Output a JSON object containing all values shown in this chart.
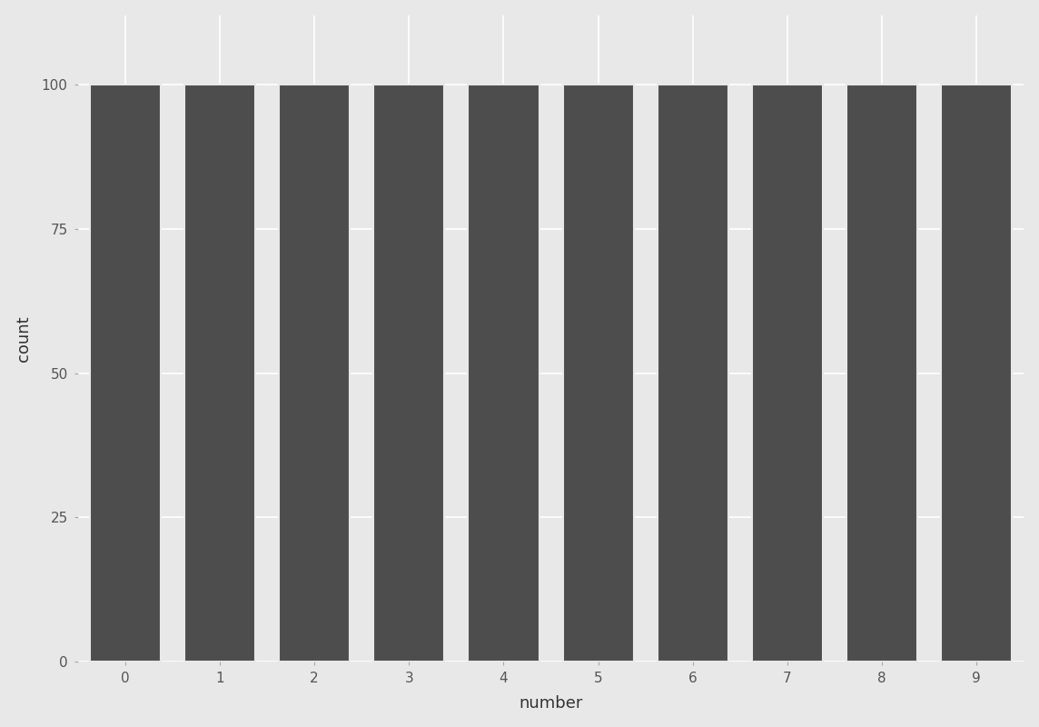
{
  "categories": [
    0,
    1,
    2,
    3,
    4,
    5,
    6,
    7,
    8,
    9
  ],
  "values": [
    100,
    100,
    100,
    100,
    100,
    100,
    100,
    100,
    100,
    100
  ],
  "bar_color": "#4d4d4d",
  "background_color": "#e8e8e8",
  "panel_background": "#e8e8e8",
  "grid_color": "#ffffff",
  "xlabel": "number",
  "ylabel": "count",
  "yticks": [
    0,
    25,
    50,
    75,
    100
  ],
  "ylim": [
    0,
    112
  ],
  "xlim": [
    -0.5,
    9.5
  ],
  "bar_width": 0.75,
  "xlabel_fontsize": 13,
  "ylabel_fontsize": 13,
  "tick_fontsize": 11
}
